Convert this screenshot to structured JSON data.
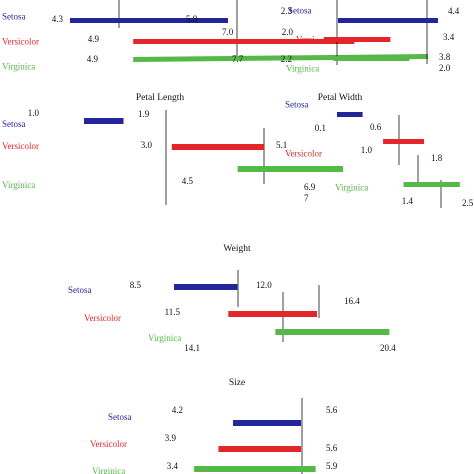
{
  "colors": {
    "setosa": "#24259a",
    "versicolor": "#e3262a",
    "virginica": "#55b947",
    "line": "#111111"
  },
  "chart_data": [
    {
      "type": "bar",
      "title": "",
      "species": [
        {
          "label": "Setosa",
          "min": 4.3,
          "min_label": "4.3",
          "max": 5.8,
          "max_label": "5.8"
        },
        {
          "label": "Versicolor",
          "min": 4.9,
          "min_label": "4.9",
          "max": 7.0,
          "max_label": "7.0"
        },
        {
          "label": "Virginica",
          "min": 4.9,
          "min_label": "4.9",
          "max": 7.7,
          "max_label": "7.7"
        }
      ]
    },
    {
      "type": "bar",
      "title": "",
      "species": [
        {
          "label": "Setosa",
          "min": 2.3,
          "min_label": "2.3",
          "max": 4.4,
          "max_label": "4.4"
        },
        {
          "label": "Versi",
          "min": 2.0,
          "min_label": "2.0",
          "max": 3.4,
          "max_label": "3.4"
        },
        {
          "label": "Virginica",
          "min": 2.2,
          "min_label": "2.2",
          "max": 3.8,
          "max_label": "3.8"
        }
      ],
      "extra_labels": [
        "2.0"
      ]
    },
    {
      "type": "bar",
      "title": "Petal Length",
      "species": [
        {
          "label": "Setosa",
          "min": 1.0,
          "min_label": "1.0",
          "max": 1.9,
          "max_label": "1.9"
        },
        {
          "label": "Versicolor",
          "min": 3.0,
          "min_label": "3.0",
          "max": 5.1,
          "max_label": "5.1"
        },
        {
          "label": "Virginica",
          "min": 4.5,
          "min_label": "4.5",
          "max": 6.9,
          "max_label": "6.9"
        }
      ],
      "extra_labels": [
        "7"
      ]
    },
    {
      "type": "bar",
      "title": "Petal Width",
      "species": [
        {
          "label": "Setosa",
          "min": 0.1,
          "min_label": "0.1",
          "max": 0.6,
          "max_label": "0.6"
        },
        {
          "label": "Versicolor",
          "min": 1.0,
          "min_label": "1.0",
          "max": 1.8,
          "max_label": "1.8"
        },
        {
          "label": "Virginica",
          "min": 1.4,
          "min_label": "1.4",
          "max": 2.5,
          "max_label": "2.5"
        }
      ]
    },
    {
      "type": "bar",
      "title": "Weight",
      "species": [
        {
          "label": "Setosa",
          "min": 8.5,
          "min_label": "8.5",
          "max": 12.0,
          "max_label": "12.0"
        },
        {
          "label": "Versicolor",
          "min": 11.5,
          "min_label": "11.5",
          "max": 16.4,
          "max_label": "16.4"
        },
        {
          "label": "Virginica",
          "min": 14.1,
          "min_label": "14.1",
          "max": 20.4,
          "max_label": "20.4"
        }
      ]
    },
    {
      "type": "bar",
      "title": "Size",
      "species": [
        {
          "label": "Setosa",
          "min": 4.2,
          "min_label": "4.2",
          "max": 5.6,
          "max_label": "5.6"
        },
        {
          "label": "Versicolor",
          "min": 3.9,
          "min_label": "3.9",
          "max": 5.6,
          "max_label": "5.6"
        },
        {
          "label": "Virginica",
          "min": 3.4,
          "min_label": "3.4",
          "max": 5.9,
          "max_label": "5.9"
        }
      ]
    }
  ]
}
